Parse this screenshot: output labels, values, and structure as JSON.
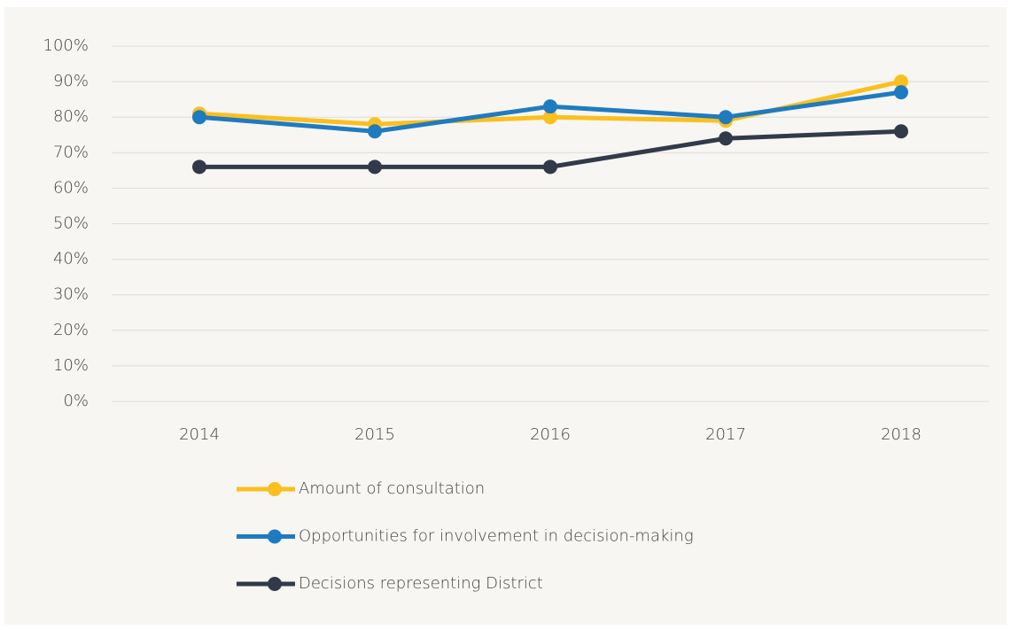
{
  "chart_data": {
    "type": "line",
    "categories": [
      "2014",
      "2015",
      "2016",
      "2017",
      "2018"
    ],
    "series": [
      {
        "name": "Amount of consultation",
        "color": "#fbbf1e",
        "values": [
          81,
          78,
          80,
          79,
          90
        ]
      },
      {
        "name": "Opportunities for involvement in decision-making",
        "color": "#1f7bc0",
        "values": [
          80,
          76,
          83,
          80,
          87
        ]
      },
      {
        "name": "Decisions representing District",
        "color": "#323a4a",
        "values": [
          66,
          66,
          66,
          74,
          76
        ]
      }
    ],
    "ylim": [
      0,
      100
    ],
    "yticks": [
      {
        "value": 0,
        "label": "0%"
      },
      {
        "value": 10,
        "label": "10%"
      },
      {
        "value": 20,
        "label": "20%"
      },
      {
        "value": 30,
        "label": "30%"
      },
      {
        "value": 40,
        "label": "40%"
      },
      {
        "value": 50,
        "label": "50%"
      },
      {
        "value": 60,
        "label": "60%"
      },
      {
        "value": 70,
        "label": "70%"
      },
      {
        "value": 80,
        "label": "80%"
      },
      {
        "value": 90,
        "label": "90%"
      },
      {
        "value": 100,
        "label": "100%"
      }
    ],
    "grid": true,
    "legend": "bottom"
  }
}
